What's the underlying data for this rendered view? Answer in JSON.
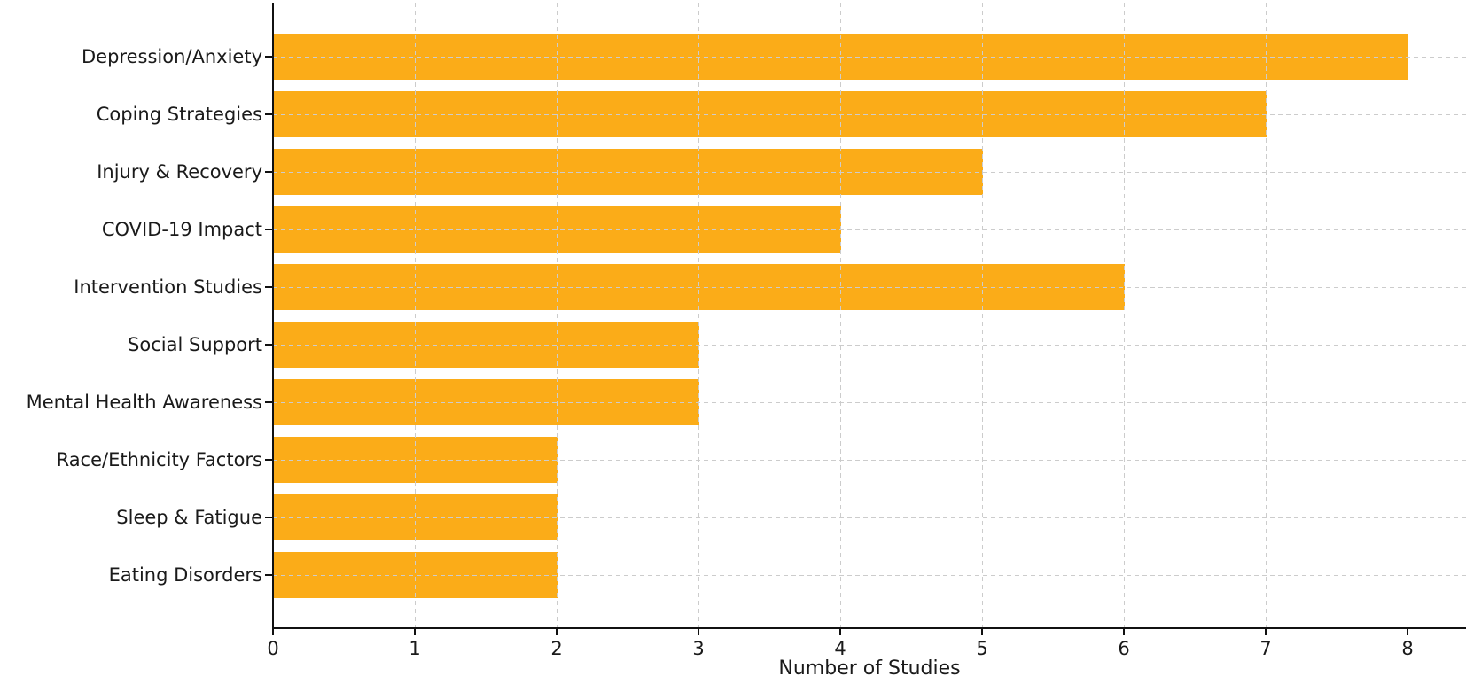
{
  "chart_data": {
    "type": "bar",
    "orientation": "horizontal",
    "title": "",
    "xlabel": "Number of Studies",
    "ylabel": "",
    "categories": [
      "Depression/Anxiety",
      "Coping Strategies",
      "Injury & Recovery",
      "COVID-19 Impact",
      "Intervention Studies",
      "Social Support",
      "Mental Health Awareness",
      "Race/Ethnicity Factors",
      "Sleep & Fatigue",
      "Eating Disorders"
    ],
    "values": [
      8,
      7,
      5,
      4,
      6,
      3,
      3,
      2,
      2,
      2
    ],
    "x_ticks": [
      0,
      1,
      2,
      3,
      4,
      5,
      6,
      7,
      8
    ],
    "xlim": [
      0,
      8.41
    ],
    "grid": "dashed-both-axes-over-bars",
    "legend": "none",
    "bar_color": "#FBAC18",
    "grid_color": "#cccccc",
    "axis_color": "#111111",
    "text_color": "#1a1a1a",
    "background_color": "#ffffff"
  }
}
